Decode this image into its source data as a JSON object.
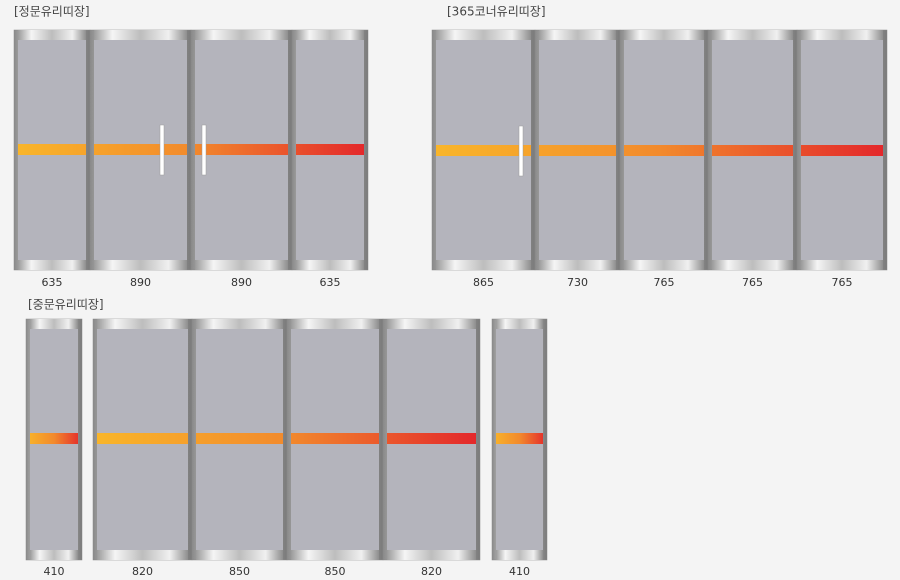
{
  "sections": [
    {
      "title": "[정문유리띠장]",
      "panels": [
        635,
        890,
        890,
        635
      ]
    },
    {
      "title": "[365코너유리띠장]",
      "panels": [
        865,
        730,
        765,
        765,
        765
      ]
    },
    {
      "title": "[중문유리띠장]",
      "panels": [
        410,
        820,
        850,
        850,
        820,
        410
      ]
    }
  ]
}
